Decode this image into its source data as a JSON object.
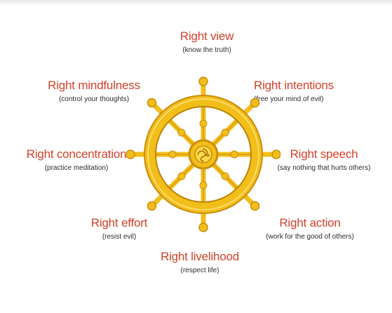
{
  "diagram": {
    "colors": {
      "title_red": "#d2412a",
      "subtitle_dark": "#2a2a2a",
      "wheel_gold": "#f2be1a",
      "wheel_shadow": "#c98e0c",
      "wheel_highlight": "#ffe27a"
    },
    "paths": [
      {
        "id": "view",
        "title": "Right view",
        "subtitle": "(know the truth)"
      },
      {
        "id": "intentions",
        "title": "Right intentions",
        "subtitle": "(free your mind of evil)"
      },
      {
        "id": "speech",
        "title": "Right speech",
        "subtitle": "(say nothing that hurts others)"
      },
      {
        "id": "action",
        "title": "Right action",
        "subtitle": "(work for the good of others)"
      },
      {
        "id": "livelihood",
        "title": "Right livelihood",
        "subtitle": "(respect life)"
      },
      {
        "id": "effort",
        "title": "Right effort",
        "subtitle": "(resist evil)"
      },
      {
        "id": "concentration",
        "title": "Right concentration",
        "subtitle": "(practice meditation)"
      },
      {
        "id": "mindfulness",
        "title": "Right mindfulness",
        "subtitle": "(control your thoughts)"
      }
    ],
    "center_icon": "dharma-wheel-icon"
  }
}
